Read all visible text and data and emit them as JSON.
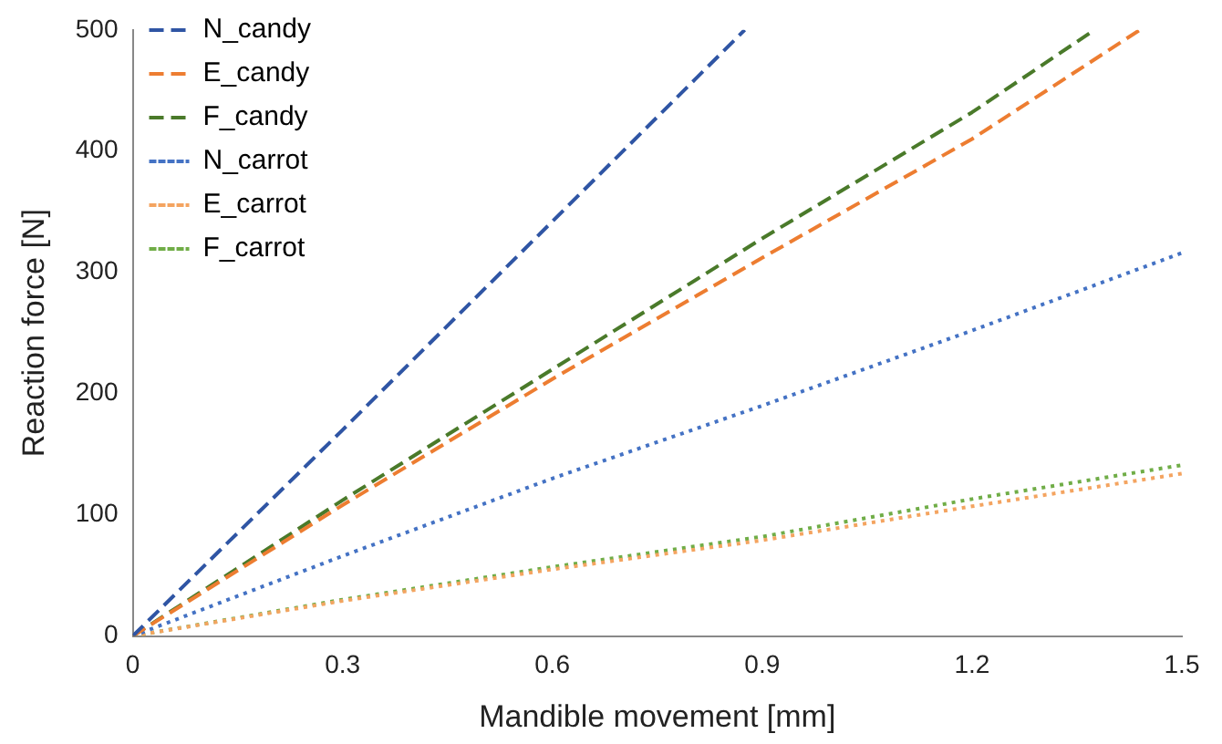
{
  "chart_data": {
    "type": "line",
    "xlabel": "Mandible movement [mm]",
    "ylabel": "Reaction force [N]",
    "xlim": [
      0,
      1.5
    ],
    "xticks": [
      0,
      0.3,
      0.6,
      0.9,
      1.2,
      1.5
    ],
    "ylim": [
      0,
      500
    ],
    "yticks": [
      0,
      100,
      200,
      300,
      400,
      500
    ],
    "grid": false,
    "legend": "top left",
    "marker": "none",
    "series": [
      {
        "name": "N_candy",
        "color": "#2f55a4",
        "line_style": "dashed",
        "x": [
          0,
          0.3,
          0.6,
          0.875
        ],
        "values": [
          0,
          170,
          342,
          500
        ]
      },
      {
        "name": "E_candy",
        "color": "#ed7d31",
        "line_style": "dashed",
        "x": [
          0,
          0.3,
          0.6,
          0.9,
          1.2,
          1.44
        ],
        "values": [
          0,
          108,
          212,
          312,
          410,
          500
        ]
      },
      {
        "name": "F_candy",
        "color": "#4a7a2a",
        "line_style": "dashed",
        "x": [
          0,
          0.3,
          0.6,
          0.9,
          1.2,
          1.375
        ],
        "values": [
          0,
          112,
          220,
          328,
          432,
          500
        ]
      },
      {
        "name": "N_carrot",
        "color": "#4472c4",
        "line_style": "dotted",
        "x": [
          0,
          0.3,
          0.6,
          0.9,
          1.2,
          1.5
        ],
        "values": [
          0,
          66,
          130,
          190,
          252,
          316
        ]
      },
      {
        "name": "E_carrot",
        "color": "#f4a460",
        "line_style": "dotted",
        "x": [
          0,
          0.3,
          0.6,
          0.9,
          1.2,
          1.5
        ],
        "values": [
          0,
          29,
          55,
          79,
          107,
          134
        ]
      },
      {
        "name": "F_carrot",
        "color": "#70ad47",
        "line_style": "dotted",
        "x": [
          0,
          0.3,
          0.6,
          0.9,
          1.2,
          1.5
        ],
        "values": [
          0,
          30,
          57,
          82,
          113,
          141
        ]
      }
    ]
  }
}
